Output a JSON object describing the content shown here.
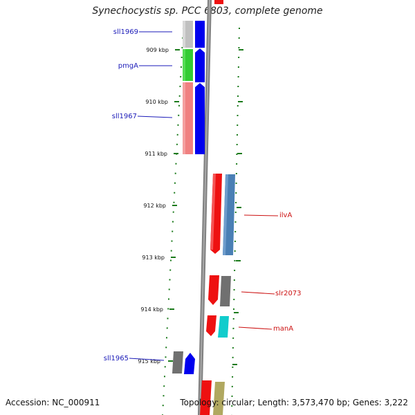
{
  "title": "Synechocystis sp. PCC 6803, complete genome",
  "accession_text": "Accession: NC_000911",
  "topology_text": "Topology: circular; Length: 3,573,470 bp; Genes: 3,222",
  "colors": {
    "backbone": "#808080",
    "tick": "#1a7a1a",
    "label_blue": "#1a1ab8",
    "label_red": "#cc1111"
  },
  "ticks": [
    "909 kbp",
    "910 kbp",
    "911 kbp",
    "912 kbp",
    "913 kbp",
    "914 kbp",
    "915 kbp"
  ],
  "gene_labels": [
    "sll1969",
    "pmgA",
    "sll1967",
    "ilvA",
    "slr2073",
    "manA",
    "sll1965"
  ]
}
